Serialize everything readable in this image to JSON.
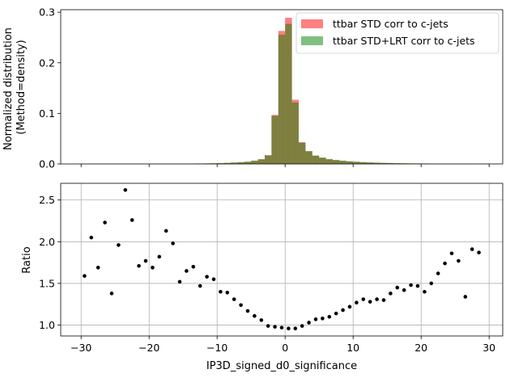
{
  "chart_data": [
    {
      "type": "bar",
      "panel": "top",
      "ylabel_lines": [
        "Normalized distribution",
        "(Method=density)"
      ],
      "xlim": [
        -33,
        32
      ],
      "ylim": [
        0,
        0.305
      ],
      "yticks": [
        0.0,
        0.1,
        0.2,
        0.3
      ],
      "ytick_labels": [
        "0.0",
        "0.1",
        "0.2",
        "0.3"
      ],
      "grid": false,
      "legend_position": "upper right",
      "bin_edges": [
        -30,
        -29,
        -28,
        -27,
        -26,
        -25,
        -24,
        -23,
        -22,
        -21,
        -20,
        -19,
        -18,
        -17,
        -16,
        -15,
        -14,
        -13,
        -12,
        -11,
        -10,
        -9,
        -8,
        -7,
        -6,
        -5,
        -4,
        -3,
        -2,
        -1,
        0,
        1,
        2,
        3,
        4,
        5,
        6,
        7,
        8,
        9,
        10,
        11,
        12,
        13,
        14,
        15,
        16,
        17,
        18,
        19,
        20,
        21,
        22,
        23,
        24,
        25,
        26,
        27,
        28,
        29,
        30
      ],
      "series": [
        {
          "name": "ttbar STD corr to c-jets",
          "color": "#ff0000",
          "alpha": 0.5,
          "values": [
            0.0001,
            0.0001,
            0.0001,
            0.0001,
            0.0001,
            0.0001,
            0.0001,
            0.0001,
            0.0001,
            0.0001,
            0.0002,
            0.0002,
            0.0002,
            0.0003,
            0.0003,
            0.0004,
            0.0005,
            0.0006,
            0.0008,
            0.001,
            0.0013,
            0.0017,
            0.0023,
            0.003,
            0.004,
            0.006,
            0.009,
            0.017,
            0.097,
            0.263,
            0.289,
            0.127,
            0.043,
            0.025,
            0.016,
            0.012,
            0.009,
            0.0072,
            0.0058,
            0.0047,
            0.0038,
            0.0031,
            0.0026,
            0.0021,
            0.0018,
            0.0015,
            0.0012,
            0.001,
            0.0008,
            0.0007,
            0.0006,
            0.0005,
            0.0004,
            0.0003,
            0.0003,
            0.0002,
            0.0002,
            0.0002,
            0.0001,
            0.0001
          ]
        },
        {
          "name": "ttbar STD+LRT corr to c-jets",
          "color": "#008000",
          "alpha": 0.5,
          "values": [
            0.0002,
            0.0002,
            0.0002,
            0.0002,
            0.0002,
            0.0002,
            0.0002,
            0.0002,
            0.0002,
            0.0002,
            0.0003,
            0.0003,
            0.0004,
            0.0005,
            0.0005,
            0.0006,
            0.0008,
            0.0009,
            0.0012,
            0.0014,
            0.0018,
            0.0023,
            0.003,
            0.0037,
            0.0046,
            0.0066,
            0.0095,
            0.0172,
            0.0951,
            0.2556,
            0.277,
            0.1214,
            0.0419,
            0.0254,
            0.0168,
            0.0128,
            0.0098,
            0.0081,
            0.0066,
            0.0055,
            0.0046,
            0.0038,
            0.0033,
            0.0027,
            0.0023,
            0.002,
            0.0017,
            0.0014,
            0.0012,
            0.001,
            0.0009,
            0.0008,
            0.0006,
            0.0005,
            0.0005,
            0.0003,
            0.0003,
            0.0004,
            0.0002,
            0.0002
          ]
        }
      ]
    },
    {
      "type": "scatter",
      "panel": "bottom",
      "xlabel": "IP3D_signed_d0_significance",
      "ylabel": "Ratio",
      "xlim": [
        -33,
        32
      ],
      "ylim": [
        0.87,
        2.7
      ],
      "xticks": [
        -30,
        -20,
        -10,
        0,
        10,
        20,
        30
      ],
      "xtick_labels": [
        "−30",
        "−20",
        "−10",
        "0",
        "10",
        "20",
        "30"
      ],
      "yticks": [
        1.0,
        1.5,
        2.0,
        2.5
      ],
      "ytick_labels": [
        "1.0",
        "1.5",
        "2.0",
        "2.5"
      ],
      "grid": true,
      "marker_color": "#000000",
      "x": [
        -29.5,
        -28.5,
        -27.5,
        -26.5,
        -25.5,
        -24.5,
        -23.5,
        -22.5,
        -21.5,
        -20.5,
        -19.5,
        -18.5,
        -17.5,
        -16.5,
        -15.5,
        -14.5,
        -13.5,
        -12.5,
        -11.5,
        -10.5,
        -9.5,
        -8.5,
        -7.5,
        -6.5,
        -5.5,
        -4.5,
        -3.5,
        -2.5,
        -1.5,
        -0.5,
        0.5,
        1.5,
        2.5,
        3.5,
        4.5,
        5.5,
        6.5,
        7.5,
        8.5,
        9.5,
        10.5,
        11.5,
        12.5,
        13.5,
        14.5,
        15.5,
        16.5,
        17.5,
        18.5,
        19.5,
        20.5,
        21.5,
        22.5,
        23.5,
        24.5,
        25.5,
        26.5,
        27.5,
        28.5
      ],
      "y": [
        1.59,
        2.05,
        1.69,
        2.23,
        1.38,
        1.96,
        2.62,
        2.26,
        1.71,
        1.77,
        1.69,
        1.82,
        2.13,
        1.98,
        1.52,
        1.65,
        1.7,
        1.47,
        1.58,
        1.55,
        1.4,
        1.39,
        1.31,
        1.24,
        1.17,
        1.11,
        1.06,
        0.99,
        0.98,
        0.97,
        0.96,
        0.96,
        0.99,
        1.03,
        1.07,
        1.08,
        1.1,
        1.14,
        1.18,
        1.22,
        1.27,
        1.31,
        1.28,
        1.31,
        1.3,
        1.38,
        1.45,
        1.42,
        1.48,
        1.47,
        1.4,
        1.5,
        1.62,
        1.74,
        1.86,
        1.77,
        1.34,
        1.91,
        1.87
      ]
    }
  ]
}
